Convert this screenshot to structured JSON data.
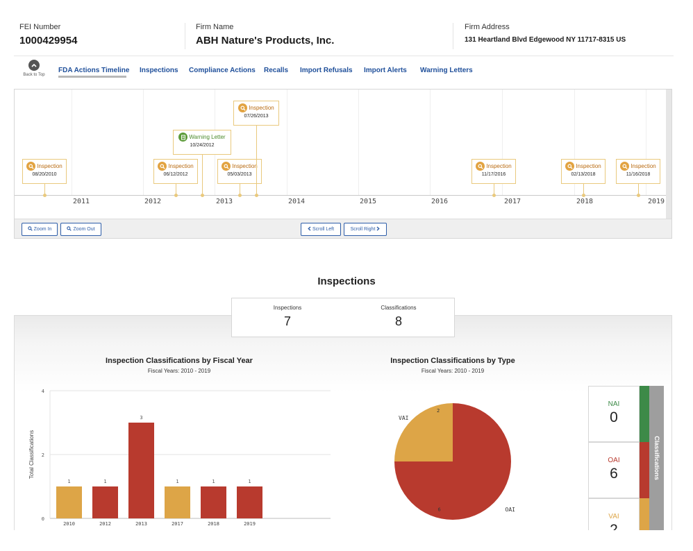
{
  "header": {
    "fei_label": "FEI Number",
    "fei_value": "1000429954",
    "firm_name_label": "Firm Name",
    "firm_name_value": "ABH Nature's Products, Inc.",
    "firm_address_label": "Firm Address",
    "firm_address_value": "131 Heartland Blvd Edgewood NY 11717-8315 US"
  },
  "nav": {
    "back_to_top": "Back to Top",
    "links": [
      "FDA Actions Timeline",
      "Inspections",
      "Compliance Actions",
      "Recalls",
      "Import Refusals",
      "Import Alerts",
      "Warning Letters"
    ],
    "active": "FDA Actions Timeline"
  },
  "timeline": {
    "years": [
      "2011",
      "2012",
      "2013",
      "2014",
      "2015",
      "2016",
      "2017",
      "2018",
      "2019"
    ],
    "events": [
      {
        "type": "Inspection",
        "date": "08/20/2010"
      },
      {
        "type": "Inspection",
        "date": "06/12/2012"
      },
      {
        "type": "Warning Letter",
        "date": "10/24/2012"
      },
      {
        "type": "Inspection",
        "date": "05/03/2013"
      },
      {
        "type": "Inspection",
        "date": "07/26/2013"
      },
      {
        "type": "Inspection",
        "date": "11/17/2016"
      },
      {
        "type": "Inspection",
        "date": "02/13/2018"
      },
      {
        "type": "Inspection",
        "date": "11/16/2018"
      }
    ],
    "buttons": {
      "zoom_in": "Zoom In",
      "zoom_out": "Zoom Out",
      "scroll_left": "Scroll Left",
      "scroll_right": "Scroll Right"
    }
  },
  "inspections": {
    "title": "Inspections",
    "stats": [
      {
        "label": "Inspections",
        "value": "7"
      },
      {
        "label": "Classifications",
        "value": "8"
      }
    ]
  },
  "colors": {
    "vai": "#dda547",
    "oai": "#b83a2e",
    "nai": "#3d8a48",
    "link": "#1f4f9a"
  },
  "chart_data": [
    {
      "type": "bar",
      "title": "Inspection Classifications by Fiscal Year",
      "subtitle": "Fiscal Years: 2010 - 2019",
      "ylabel": "Total Classifications",
      "xlabel": "",
      "ylim": [
        0,
        4
      ],
      "yticks": [
        "0",
        "2",
        "4"
      ],
      "categories": [
        "2010",
        "2012",
        "2013",
        "2017",
        "2018",
        "2019"
      ],
      "values": [
        1,
        1,
        3,
        1,
        1,
        1
      ],
      "classes": [
        "VAI",
        "OAI",
        "OAI",
        "VAI",
        "OAI",
        "OAI"
      ],
      "grid": true
    },
    {
      "type": "pie",
      "title": "Inspection Classifications by Type",
      "subtitle": "Fiscal Years: 2010 - 2019",
      "slices": [
        {
          "label": "OAI",
          "value": 6
        },
        {
          "label": "VAI",
          "value": 2
        }
      ]
    }
  ],
  "classifications": {
    "side_label": "Classifications",
    "items": [
      {
        "name": "NAI",
        "value": "0"
      },
      {
        "name": "OAI",
        "value": "6"
      },
      {
        "name": "VAI",
        "value": "2"
      }
    ]
  }
}
